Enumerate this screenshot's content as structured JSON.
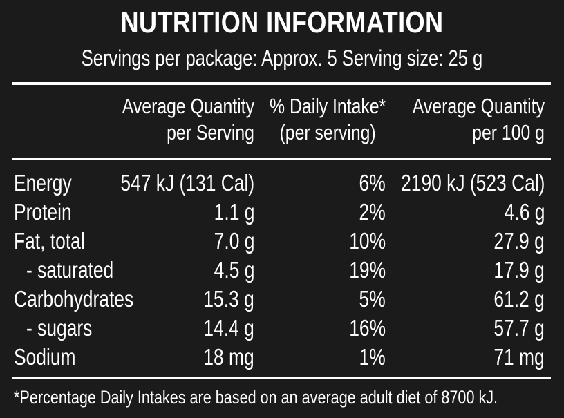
{
  "title": "NUTRITION INFORMATION",
  "servings_line": "Servings per package: Approx. 5  Serving size: 25 g",
  "headers": {
    "per_serving": [
      "Average Quantity",
      "per Serving"
    ],
    "daily_intake": [
      "% Daily Intake*",
      "(per serving)"
    ],
    "per_100g": [
      "Average Quantity",
      "per 100 g"
    ]
  },
  "rows": [
    {
      "name": "Energy",
      "per_serving": "547 kJ (131 Cal)",
      "daily_intake": "6%",
      "per_100g": "2190 kJ (523 Cal)"
    },
    {
      "name": "Protein",
      "per_serving": "1.1 g",
      "daily_intake": "2%",
      "per_100g": "4.6 g"
    },
    {
      "name": "Fat, total",
      "per_serving": "7.0 g",
      "daily_intake": "10%",
      "per_100g": "27.9 g"
    },
    {
      "name": "- saturated",
      "per_serving": "4.5 g",
      "daily_intake": "19%",
      "per_100g": "17.9 g"
    },
    {
      "name": "Carbohydrates",
      "per_serving": "15.3 g",
      "daily_intake": "5%",
      "per_100g": "61.2 g"
    },
    {
      "name": "- sugars",
      "per_serving": "14.4 g",
      "daily_intake": "16%",
      "per_100g": "57.7 g"
    },
    {
      "name": "Sodium",
      "per_serving": "18 mg",
      "daily_intake": "1%",
      "per_100g": "71 mg"
    }
  ],
  "footnote": "*Percentage Daily Intakes are based on an average adult diet of 8700 kJ.",
  "colors": {
    "background": "#1b1b1b",
    "text": "#ffffff"
  }
}
